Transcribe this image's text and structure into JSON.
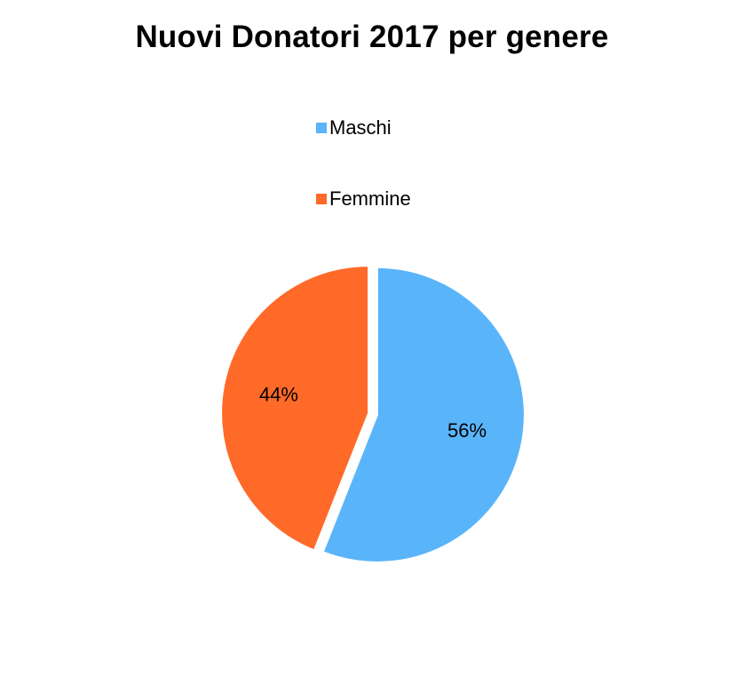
{
  "chart_data": {
    "type": "pie",
    "title": "Nuovi Donatori 2017 per genere",
    "legend_position": "top",
    "slices": [
      {
        "name": "Maschi",
        "value": 56,
        "label": "56%",
        "color": "#5AB4FA"
      },
      {
        "name": "Femmine",
        "value": 44,
        "label": "44%",
        "color": "#FF6A28"
      }
    ]
  }
}
